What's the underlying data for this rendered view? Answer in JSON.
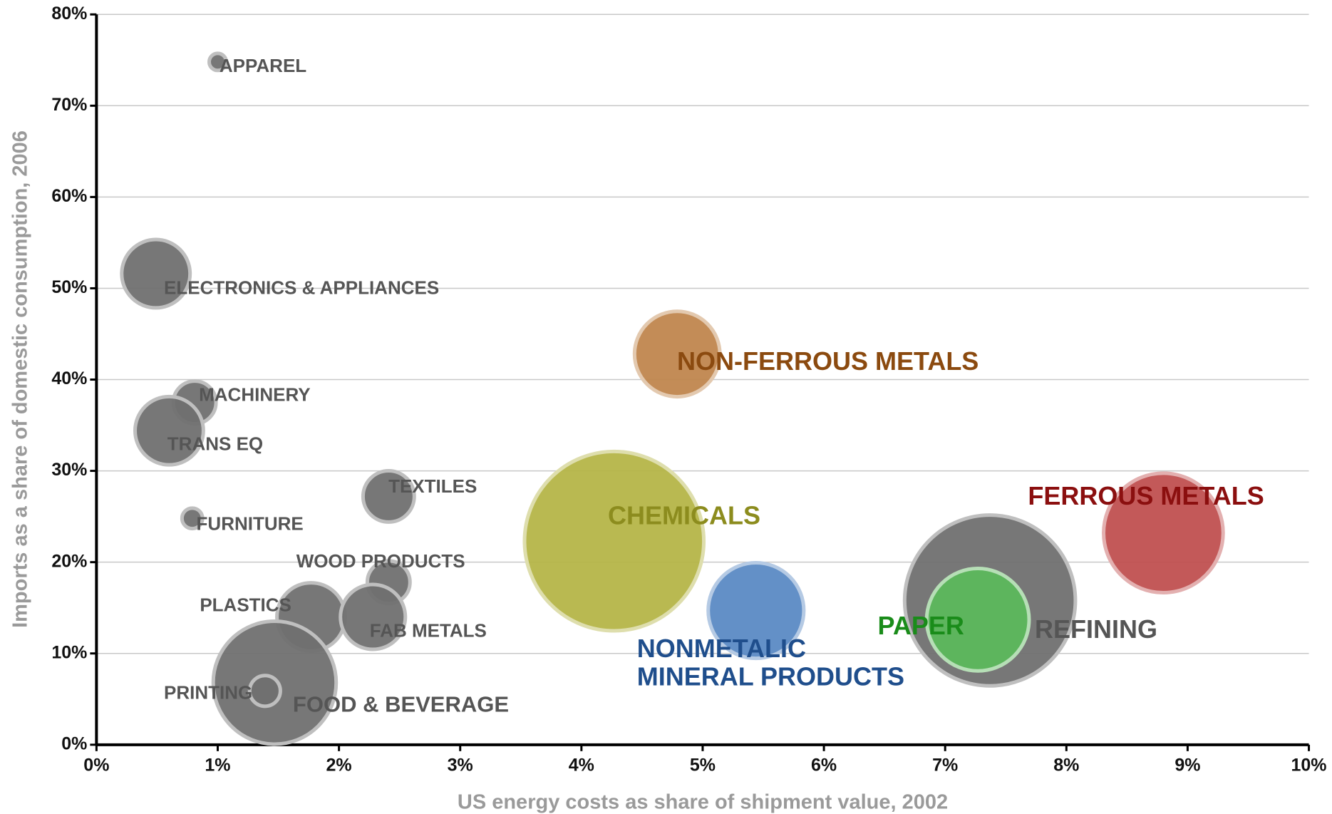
{
  "chart_data": {
    "type": "scatter",
    "x_label": "US energy costs as share of shipment value, 2002",
    "y_label": "Imports as a share of domestic consumption, 2006",
    "labels": [
      "APPAREL",
      "ELECTRONICS & APPLIANCES",
      "MACHINERY",
      "TRANS EQ",
      "TEXTILES",
      "FURNITURE",
      "WOOD PRODUCTS",
      "PLASTICS",
      "FAB METALS",
      "FOOD & BEVERAGE",
      "PRINTING",
      "CHEMICALS",
      "NON-FERROUS METALS",
      [
        "NONMETALIC",
        "MINERAL PRODUCTS"
      ],
      "REFINING",
      "PAPER",
      "FERROUS METALS"
    ],
    "x": [
      1.0,
      0.49,
      0.81,
      0.6,
      2.41,
      0.79,
      2.41,
      1.77,
      2.28,
      1.47,
      1.39,
      4.27,
      4.79,
      5.44,
      7.37,
      7.27,
      8.8
    ],
    "y": [
      74.8,
      51.6,
      37.5,
      34.4,
      27.2,
      24.8,
      17.8,
      14.0,
      14.0,
      6.8,
      5.9,
      22.3,
      42.8,
      14.7,
      15.8,
      13.7,
      23.2
    ],
    "sizes": [
      10,
      40,
      25,
      40,
      30,
      12,
      25,
      40,
      38,
      72,
      18,
      105,
      50,
      56,
      100,
      60,
      70
    ],
    "colors": [
      "#707070",
      "#707070",
      "#707070",
      "#707070",
      "#707070",
      "#707070",
      "#707070",
      "#707070",
      "#707070",
      "#707070",
      "#707070",
      "#b5b548",
      "#c0864e",
      "#5b8ac4",
      "#707070",
      "#5cb85c",
      "#c05050"
    ],
    "label_colors": [
      "#555555",
      "#555555",
      "#555555",
      "#555555",
      "#555555",
      "#555555",
      "#555555",
      "#555555",
      "#555555",
      "#555555",
      "#555555",
      "#8c8c1e",
      "#8b4a0f",
      "#1f4e8c",
      "#555555",
      "#1a8c1a",
      "#8b0f0f"
    ],
    "xlim": [
      0,
      10
    ],
    "xticks": [
      {
        "value": 0,
        "label": "0%"
      },
      {
        "value": 1,
        "label": "1%"
      },
      {
        "value": 2,
        "label": "2%"
      },
      {
        "value": 3,
        "label": "3%"
      },
      {
        "value": 4,
        "label": "4%"
      },
      {
        "value": 5,
        "label": "5%"
      },
      {
        "value": 6,
        "label": "6%"
      },
      {
        "value": 7,
        "label": "7%"
      },
      {
        "value": 8,
        "label": "8%"
      },
      {
        "value": 9,
        "label": "9%"
      },
      {
        "value": 10,
        "label": "10%"
      }
    ],
    "ylim": [
      0,
      80
    ],
    "yticks": [
      {
        "value": 0,
        "label": "0%"
      },
      {
        "value": 10,
        "label": "10%"
      },
      {
        "value": 20,
        "label": "20%"
      },
      {
        "value": 30,
        "label": "30%"
      },
      {
        "value": 40,
        "label": "40%"
      },
      {
        "value": 50,
        "label": "50%"
      },
      {
        "value": 60,
        "label": "60%"
      },
      {
        "value": 70,
        "label": "70%"
      },
      {
        "value": 80,
        "label": "80%"
      }
    ],
    "grid": true
  }
}
